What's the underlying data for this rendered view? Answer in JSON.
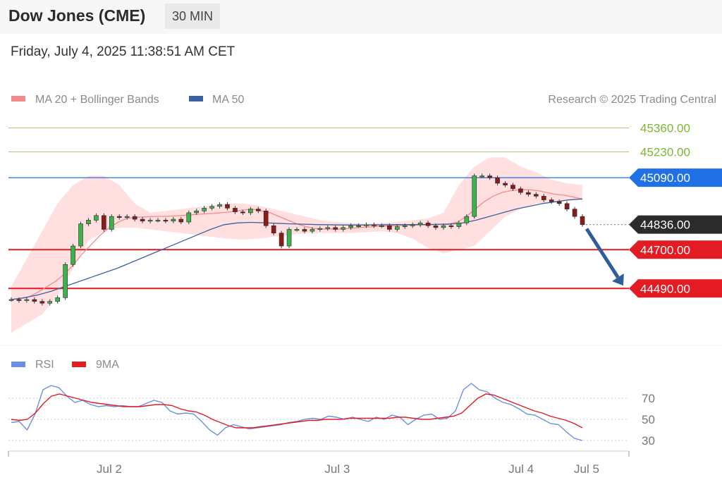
{
  "header": {
    "title": "Dow Jones (CME)",
    "timeframe": "30 MIN"
  },
  "datetime": "Friday, July 4, 2025 11:38:51 AM CET",
  "credit": "Research © 2025 Trading Central",
  "colors": {
    "resistance": "#7ab832",
    "pivot": "#1f6fe5",
    "support": "#e31b23",
    "current": "#2b2b2b",
    "rsi": "#6b8fe3",
    "rsi_ma": "#e31b23",
    "ma50": "#3a62a0",
    "boll": "#ffd9d9",
    "arrow": "#2f5d9a"
  },
  "chart_data": [
    {
      "type": "candlestick",
      "legend": [
        {
          "name": "MA 20 + Bollinger Bands"
        },
        {
          "name": "MA 50"
        }
      ],
      "ylim": [
        44220,
        45480
      ],
      "x_ticks": [
        "Jul 2",
        "Jul 3",
        "Jul 4",
        "Jul 5"
      ],
      "x_tick_pos": [
        1.6,
        32.6,
        57.6,
        66.5
      ],
      "grid": false,
      "levels": [
        {
          "label": "45360.00",
          "value": 45360,
          "role": "resistance"
        },
        {
          "label": "45230.00",
          "value": 45230,
          "role": "resistance"
        },
        {
          "label": "45090.00",
          "value": 45090,
          "role": "pivot"
        },
        {
          "label": "44836.00",
          "value": 44836,
          "role": "current"
        },
        {
          "label": "44700.00",
          "value": 44700,
          "role": "support"
        },
        {
          "label": "44490.00",
          "value": 44490,
          "role": "support"
        }
      ],
      "close": [
        44430,
        44425,
        44430,
        44420,
        44410,
        44420,
        44440,
        44620,
        44720,
        44840,
        44860,
        44885,
        44810,
        44880,
        44875,
        44880,
        44865,
        44855,
        44860,
        44860,
        44855,
        44865,
        44850,
        44900,
        44910,
        44925,
        44935,
        44945,
        44925,
        44905,
        44900,
        44920,
        44910,
        44830,
        44790,
        44720,
        44810,
        44810,
        44800,
        44810,
        44815,
        44820,
        44810,
        44820,
        44830,
        44830,
        44835,
        44830,
        44830,
        44810,
        44825,
        44830,
        44835,
        44845,
        44830,
        44820,
        44830,
        44825,
        44845,
        44880,
        45100,
        45100,
        45090,
        45060,
        45050,
        45030,
        45010,
        45000,
        44990,
        44970,
        44960,
        44950,
        44920,
        44880,
        44836
      ],
      "ma20": [
        44430,
        44435,
        44445,
        44470,
        44500,
        44530,
        44570,
        44620,
        44680,
        44730,
        44780,
        44820,
        44850,
        44870,
        44875,
        44878,
        44880,
        44880,
        44882,
        44885,
        44888,
        44892,
        44895,
        44898,
        44902,
        44908,
        44915,
        44920,
        44910,
        44900,
        44880,
        44860,
        44840,
        44825,
        44815,
        44812,
        44812,
        44812,
        44815,
        44820,
        44823,
        44826,
        44828,
        44830,
        44832,
        44834,
        44835,
        44836,
        44838,
        44840,
        44850,
        44880,
        44920,
        44960,
        44990,
        45010,
        45020,
        45025,
        45025,
        45020,
        45010,
        45000,
        44995,
        44985,
        44975
      ],
      "ma50": [
        44430,
        44440,
        44455,
        44475,
        44500,
        44525,
        44550,
        44575,
        44600,
        44630,
        44660,
        44690,
        44720,
        44750,
        44780,
        44810,
        44835,
        44845,
        44848,
        44846,
        44843,
        44840,
        44838,
        44836,
        44835,
        44834,
        44834,
        44834,
        44835,
        44836,
        44836,
        44836,
        44837,
        44838,
        44845,
        44860,
        44880,
        44900,
        44920,
        44935,
        44950,
        44960,
        44970,
        44975
      ],
      "boll_upper": [
        44500,
        44650,
        44800,
        44950,
        45050,
        45100,
        45100,
        45050,
        44950,
        44900,
        44910,
        44920,
        44930,
        44940,
        44950,
        44950,
        44940,
        44920,
        44900,
        44880,
        44860,
        44850,
        44845,
        44840,
        44845,
        44850,
        44860,
        44870,
        44900,
        45050,
        45150,
        45200,
        45200,
        45150,
        45120,
        45080,
        45060,
        45050
      ],
      "boll_lower": [
        44250,
        44300,
        44350,
        44450,
        44600,
        44750,
        44800,
        44820,
        44820,
        44810,
        44800,
        44790,
        44780,
        44770,
        44760,
        44755,
        44760,
        44770,
        44780,
        44790,
        44790,
        44790,
        44790,
        44795,
        44800,
        44790,
        44760,
        44710,
        44680,
        44700,
        44720,
        44800,
        44880,
        44920,
        44950,
        44960,
        44965,
        44970
      ]
    },
    {
      "type": "line",
      "legend": [
        {
          "name": "RSI"
        },
        {
          "name": "9MA"
        }
      ],
      "ylim": [
        20,
        90
      ],
      "y_ticks": [
        70,
        50,
        30
      ],
      "series": [
        {
          "name": "RSI",
          "values": [
            47,
            48,
            40,
            55,
            78,
            82,
            80,
            72,
            66,
            68,
            64,
            62,
            63,
            62,
            63,
            62,
            62,
            65,
            68,
            66,
            58,
            55,
            56,
            55,
            48,
            40,
            35,
            42,
            45,
            43,
            41,
            42,
            43,
            44,
            45,
            47,
            48,
            50,
            51,
            50,
            53,
            52,
            50,
            52,
            50,
            48,
            52,
            50,
            54,
            52,
            45,
            50,
            54,
            55,
            50,
            51,
            58,
            78,
            84,
            78,
            76,
            70,
            66,
            64,
            60,
            55,
            54,
            50,
            46,
            45,
            38,
            32,
            30
          ]
        },
        {
          "name": "9MA",
          "values": [
            50,
            49,
            50,
            56,
            65,
            72,
            74,
            72,
            70,
            68,
            66,
            65,
            64,
            63,
            62,
            62,
            62,
            63,
            64,
            64,
            63,
            60,
            58,
            57,
            54,
            50,
            47,
            44,
            42,
            42,
            42,
            43,
            44,
            45,
            46,
            47,
            48,
            49,
            49,
            50,
            50,
            50,
            51,
            51,
            51,
            51,
            51,
            51,
            52,
            52,
            51,
            50,
            50,
            51,
            52,
            53,
            56,
            63,
            70,
            74,
            73,
            70,
            67,
            64,
            61,
            58,
            56,
            53,
            51,
            49,
            46,
            42
          ]
        }
      ]
    }
  ]
}
